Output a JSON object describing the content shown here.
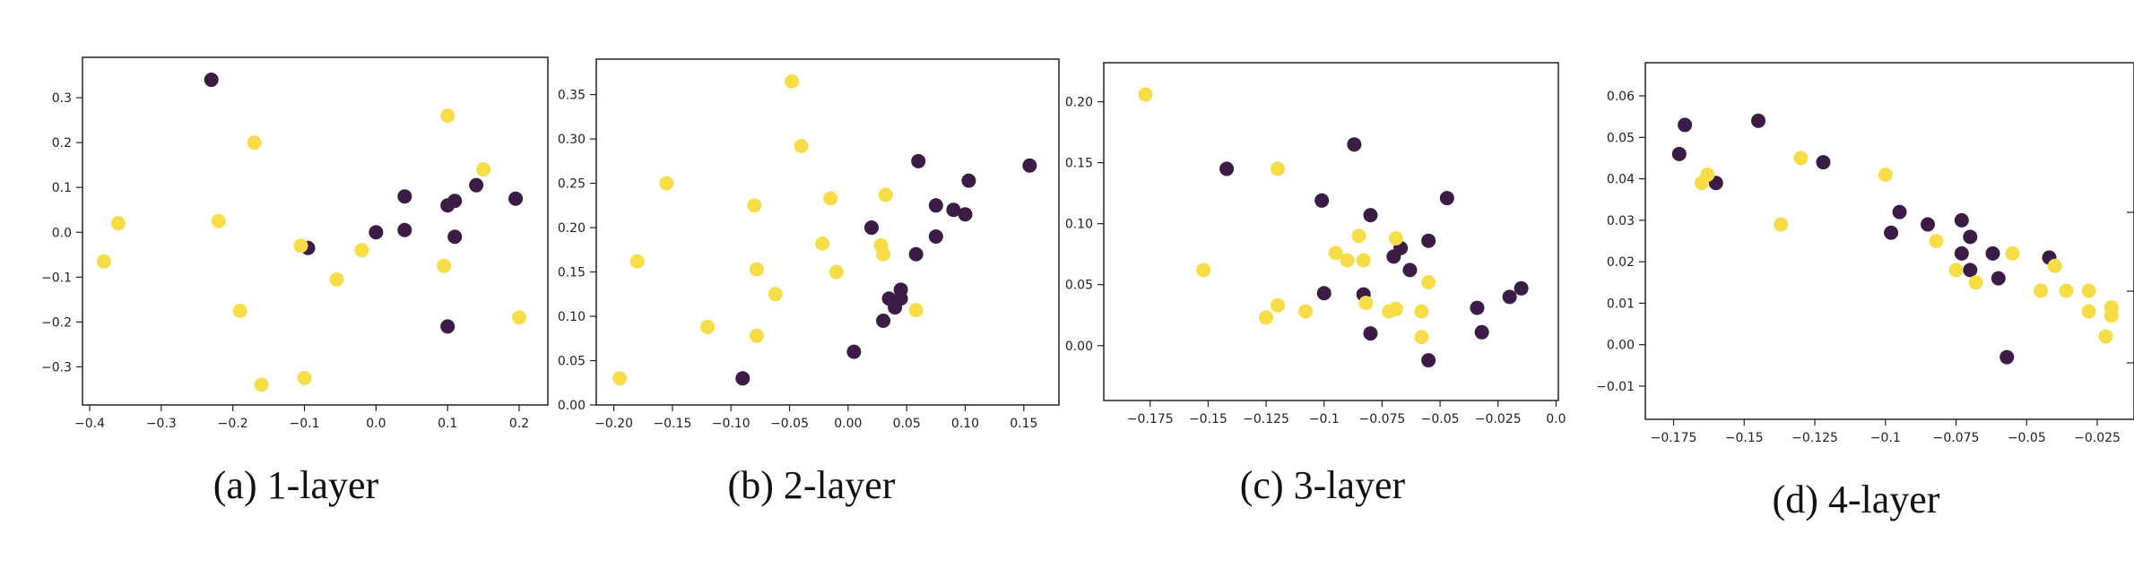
{
  "figure": {
    "colors": {
      "dark": "#3b1c47",
      "yellow": "#f7dd47",
      "frame": "#222222",
      "background": "#ffffff"
    }
  },
  "chart_data": [
    {
      "type": "scatter",
      "caption": "(a) 1-layer",
      "title": "",
      "xlabel": "",
      "ylabel": "",
      "xlim": [
        -0.41,
        0.24
      ],
      "ylim": [
        -0.385,
        0.39
      ],
      "xticks": [
        -0.4,
        -0.3,
        -0.2,
        -0.1,
        0.0,
        0.1,
        0.2
      ],
      "yticks": [
        -0.3,
        -0.2,
        -0.1,
        0.0,
        0.1,
        0.2,
        0.3
      ],
      "grid": false,
      "series": [
        {
          "color": "dark",
          "points": [
            [
              -0.23,
              0.34
            ],
            [
              -0.095,
              -0.035
            ],
            [
              0.0,
              0.0
            ],
            [
              0.04,
              0.005
            ],
            [
              0.04,
              0.08
            ],
            [
              0.1,
              0.06
            ],
            [
              0.11,
              0.07
            ],
            [
              0.11,
              -0.01
            ],
            [
              0.14,
              0.105
            ],
            [
              0.195,
              0.075
            ],
            [
              0.1,
              -0.21
            ]
          ]
        },
        {
          "color": "yellow",
          "points": [
            [
              -0.38,
              -0.065
            ],
            [
              -0.36,
              0.02
            ],
            [
              -0.22,
              0.025
            ],
            [
              -0.17,
              0.2
            ],
            [
              -0.19,
              -0.175
            ],
            [
              -0.16,
              -0.34
            ],
            [
              -0.1,
              -0.325
            ],
            [
              -0.105,
              -0.03
            ],
            [
              -0.055,
              -0.105
            ],
            [
              -0.02,
              -0.04
            ],
            [
              0.1,
              0.26
            ],
            [
              0.15,
              0.14
            ],
            [
              0.095,
              -0.075
            ],
            [
              0.2,
              -0.19
            ]
          ]
        }
      ]
    },
    {
      "type": "scatter",
      "caption": "(b) 2-layer",
      "title": "",
      "xlabel": "",
      "ylabel": "",
      "xlim": [
        -0.215,
        0.18
      ],
      "ylim": [
        0.0,
        0.39
      ],
      "xticks": [
        -0.2,
        -0.15,
        -0.1,
        -0.05,
        0.0,
        0.05,
        0.1,
        0.15
      ],
      "yticks": [
        0.0,
        0.05,
        0.1,
        0.15,
        0.2,
        0.25,
        0.3,
        0.35
      ],
      "grid": false,
      "series": [
        {
          "color": "dark",
          "points": [
            [
              -0.09,
              0.03
            ],
            [
              0.005,
              0.06
            ],
            [
              0.02,
              0.2
            ],
            [
              0.03,
              0.095
            ],
            [
              0.035,
              0.12
            ],
            [
              0.04,
              0.11
            ],
            [
              0.045,
              0.12
            ],
            [
              0.045,
              0.13
            ],
            [
              0.058,
              0.17
            ],
            [
              0.06,
              0.275
            ],
            [
              0.075,
              0.225
            ],
            [
              0.075,
              0.19
            ],
            [
              0.09,
              0.22
            ],
            [
              0.1,
              0.215
            ],
            [
              0.103,
              0.253
            ],
            [
              0.155,
              0.27
            ]
          ]
        },
        {
          "color": "yellow",
          "points": [
            [
              -0.195,
              0.03
            ],
            [
              -0.18,
              0.162
            ],
            [
              -0.155,
              0.25
            ],
            [
              -0.12,
              0.088
            ],
            [
              -0.08,
              0.225
            ],
            [
              -0.078,
              0.153
            ],
            [
              -0.078,
              0.078
            ],
            [
              -0.062,
              0.125
            ],
            [
              -0.048,
              0.365
            ],
            [
              -0.04,
              0.292
            ],
            [
              -0.022,
              0.182
            ],
            [
              -0.015,
              0.233
            ],
            [
              -0.01,
              0.15
            ],
            [
              0.03,
              0.17
            ],
            [
              0.028,
              0.18
            ],
            [
              0.032,
              0.237
            ],
            [
              0.058,
              0.107
            ]
          ]
        }
      ]
    },
    {
      "type": "scatter",
      "caption": "(c) 3-layer",
      "title": "",
      "xlabel": "",
      "ylabel": "",
      "xlim": [
        -0.195,
        0.001
      ],
      "ylim": [
        -0.045,
        0.232
      ],
      "xticks": [
        -0.175,
        -0.15,
        -0.125,
        -0.1,
        -0.075,
        -0.05,
        -0.025,
        0.0
      ],
      "yticks": [
        0.0,
        0.05,
        0.1,
        0.15,
        0.2
      ],
      "grid": false,
      "series": [
        {
          "color": "dark",
          "points": [
            [
              -0.142,
              0.145
            ],
            [
              -0.101,
              0.119
            ],
            [
              -0.087,
              0.165
            ],
            [
              -0.08,
              0.107
            ],
            [
              -0.1,
              0.043
            ],
            [
              -0.083,
              0.042
            ],
            [
              -0.08,
              0.01
            ],
            [
              -0.067,
              0.08
            ],
            [
              -0.063,
              0.062
            ],
            [
              -0.07,
              0.073
            ],
            [
              -0.055,
              0.086
            ],
            [
              -0.047,
              0.121
            ],
            [
              -0.055,
              -0.012
            ],
            [
              -0.034,
              0.031
            ],
            [
              -0.032,
              0.011
            ],
            [
              -0.02,
              0.04
            ],
            [
              -0.015,
              0.047
            ]
          ]
        },
        {
          "color": "yellow",
          "points": [
            [
              -0.177,
              0.206
            ],
            [
              -0.152,
              0.062
            ],
            [
              -0.12,
              0.145
            ],
            [
              -0.125,
              0.023
            ],
            [
              -0.12,
              0.033
            ],
            [
              -0.108,
              0.028
            ],
            [
              -0.095,
              0.076
            ],
            [
              -0.09,
              0.07
            ],
            [
              -0.085,
              0.09
            ],
            [
              -0.083,
              0.07
            ],
            [
              -0.082,
              0.035
            ],
            [
              -0.072,
              0.028
            ],
            [
              -0.069,
              0.03
            ],
            [
              -0.069,
              0.088
            ],
            [
              -0.058,
              0.028
            ],
            [
              -0.055,
              0.052
            ],
            [
              -0.058,
              0.007
            ]
          ]
        }
      ]
    },
    {
      "type": "scatter",
      "caption": "(d) 4-layer",
      "title": "",
      "xlabel": "",
      "ylabel": "",
      "xlim": [
        -0.185,
        -0.012
      ],
      "ylim": [
        -0.018,
        0.068
      ],
      "xticks": [
        -0.175,
        -0.15,
        -0.125,
        -0.1,
        -0.075,
        -0.05,
        -0.025
      ],
      "yticks": [
        -0.01,
        0.0,
        0.01,
        0.02,
        0.03,
        0.04,
        0.05,
        0.06
      ],
      "grid": false,
      "series": [
        {
          "color": "dark",
          "points": [
            [
              -0.173,
              0.046
            ],
            [
              -0.171,
              0.053
            ],
            [
              -0.16,
              0.039
            ],
            [
              -0.145,
              0.054
            ],
            [
              -0.122,
              0.044
            ],
            [
              -0.098,
              0.027
            ],
            [
              -0.095,
              0.032
            ],
            [
              -0.085,
              0.029
            ],
            [
              -0.073,
              0.03
            ],
            [
              -0.07,
              0.026
            ],
            [
              -0.073,
              0.022
            ],
            [
              -0.07,
              0.018
            ],
            [
              -0.062,
              0.022
            ],
            [
              -0.06,
              0.016
            ],
            [
              -0.042,
              0.021
            ],
            [
              -0.057,
              -0.003
            ]
          ]
        },
        {
          "color": "yellow",
          "points": [
            [
              -0.165,
              0.039
            ],
            [
              -0.163,
              0.041
            ],
            [
              -0.13,
              0.045
            ],
            [
              -0.137,
              0.029
            ],
            [
              -0.1,
              0.041
            ],
            [
              -0.082,
              0.025
            ],
            [
              -0.075,
              0.018
            ],
            [
              -0.068,
              0.015
            ],
            [
              -0.055,
              0.022
            ],
            [
              -0.045,
              0.013
            ],
            [
              -0.04,
              0.019
            ],
            [
              -0.036,
              0.013
            ],
            [
              -0.028,
              0.013
            ],
            [
              -0.028,
              0.008
            ],
            [
              -0.02,
              0.009
            ],
            [
              -0.02,
              0.007
            ],
            [
              -0.022,
              0.002
            ]
          ]
        }
      ]
    }
  ]
}
